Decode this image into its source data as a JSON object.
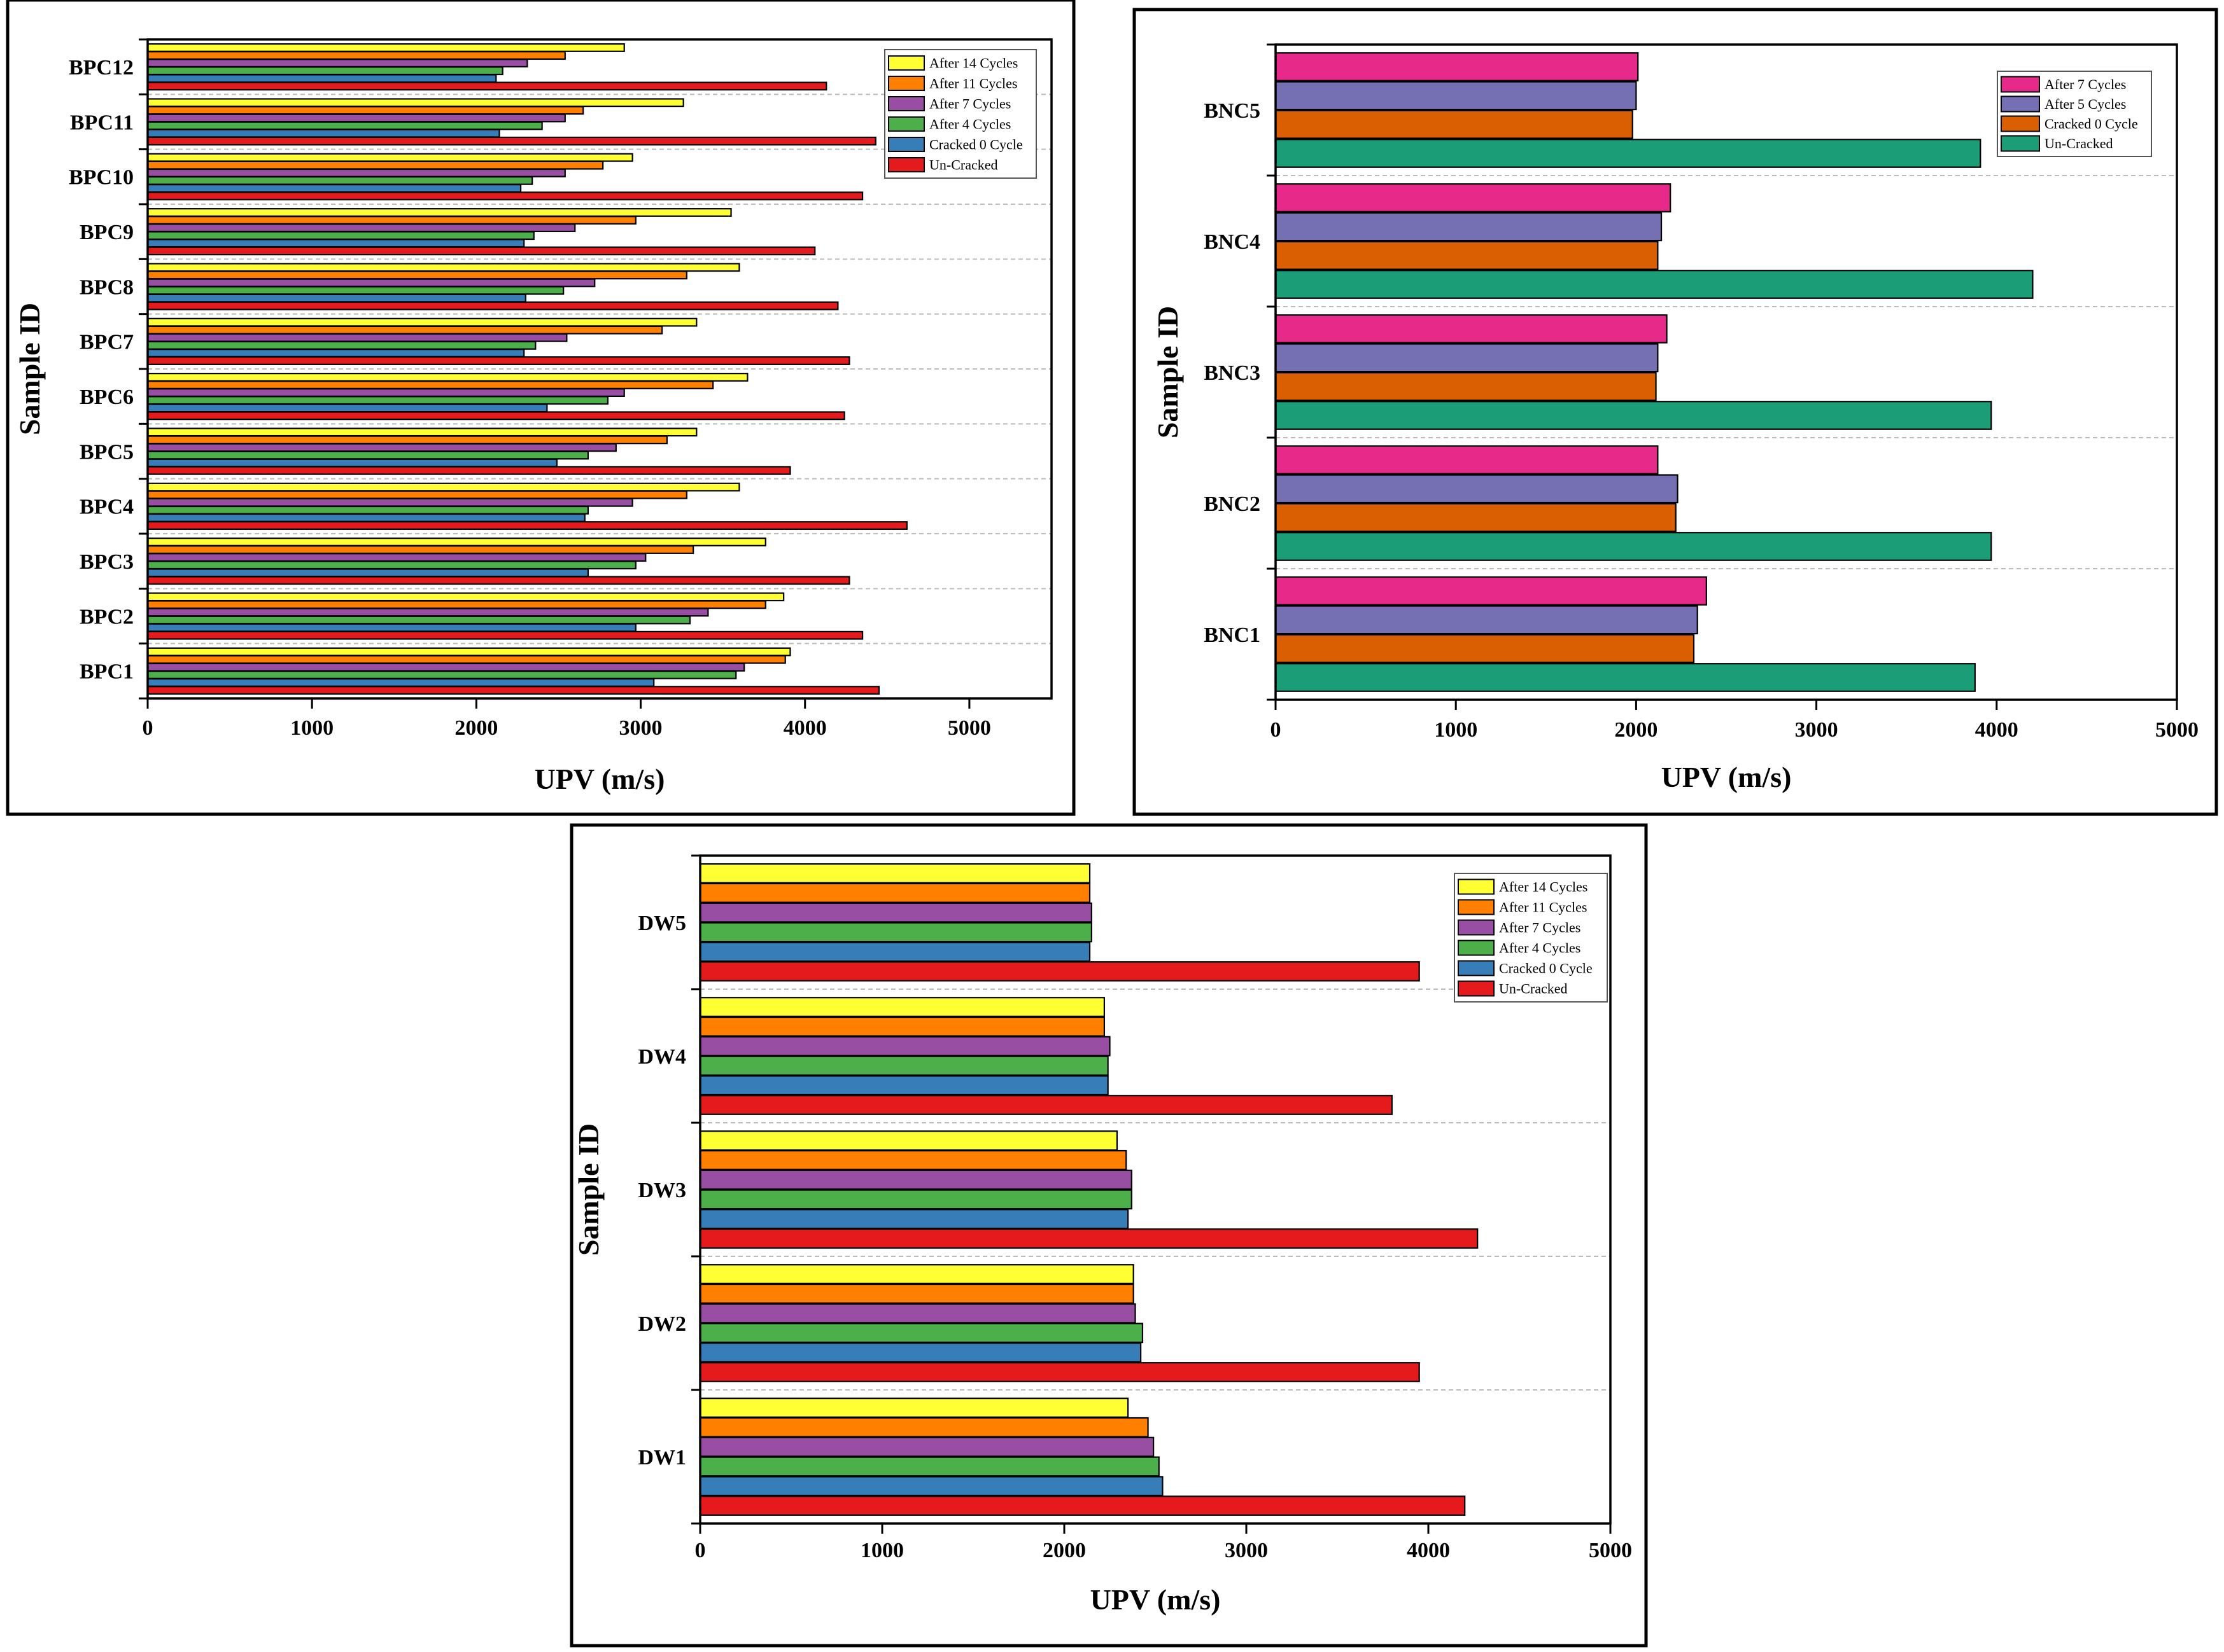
{
  "chart_data": [
    {
      "id": "bpc",
      "type": "bar",
      "orientation": "horizontal",
      "xlabel": "UPV (m/s)",
      "ylabel": "Sample ID",
      "xlim": [
        0,
        5500
      ],
      "xticks": [
        0,
        1000,
        2000,
        3000,
        4000,
        5000
      ],
      "categories": [
        "BPC1",
        "BPC2",
        "BPC3",
        "BPC4",
        "BPC5",
        "BPC6",
        "BPC7",
        "BPC8",
        "BPC9",
        "BPC10",
        "BPC11",
        "BPC12"
      ],
      "series": [
        {
          "name": "Un-Cracked",
          "color": "#e41a1c",
          "values": [
            4450,
            4350,
            4270,
            4620,
            3910,
            4240,
            4270,
            4200,
            4060,
            4350,
            4430,
            4130
          ]
        },
        {
          "name": "Cracked 0 Cycle",
          "color": "#377eb8",
          "values": [
            3080,
            2970,
            2680,
            2660,
            2490,
            2430,
            2290,
            2300,
            2290,
            2270,
            2140,
            2120
          ]
        },
        {
          "name": "After 4 Cycles",
          "color": "#4daf4a",
          "values": [
            3580,
            3300,
            2970,
            2680,
            2680,
            2800,
            2360,
            2530,
            2350,
            2340,
            2400,
            2160
          ]
        },
        {
          "name": "After 7 Cycles",
          "color": "#984ea3",
          "values": [
            3630,
            3410,
            3030,
            2950,
            2850,
            2900,
            2550,
            2720,
            2600,
            2540,
            2540,
            2310
          ]
        },
        {
          "name": "After 11 Cycles",
          "color": "#ff7f00",
          "values": [
            3880,
            3760,
            3320,
            3280,
            3160,
            3440,
            3130,
            3280,
            2970,
            2770,
            2650,
            2540
          ]
        },
        {
          "name": "After 14 Cycles",
          "color": "#ffff33",
          "values": [
            3910,
            3870,
            3760,
            3600,
            3340,
            3650,
            3340,
            3600,
            3550,
            2950,
            3260,
            2900
          ]
        }
      ],
      "legend_order": [
        "After 14 Cycles",
        "After 11 Cycles",
        "After 7 Cycles",
        "After 4 Cycles",
        "Cracked 0 Cycle",
        "Un-Cracked"
      ]
    },
    {
      "id": "bnc",
      "type": "bar",
      "orientation": "horizontal",
      "xlabel": "UPV (m/s)",
      "ylabel": "Sample ID",
      "xlim": [
        0,
        5000
      ],
      "xticks": [
        0,
        1000,
        2000,
        3000,
        4000,
        5000
      ],
      "categories": [
        "BNC1",
        "BNC2",
        "BNC3",
        "BNC4",
        "BNC5"
      ],
      "series": [
        {
          "name": "Un-Cracked",
          "color": "#1b9e77",
          "values": [
            3880,
            3970,
            3970,
            4200,
            3910
          ]
        },
        {
          "name": "Cracked 0 Cycle",
          "color": "#d95f02",
          "values": [
            2320,
            2220,
            2110,
            2120,
            1980
          ]
        },
        {
          "name": "After 5 Cycles",
          "color": "#7570b3",
          "values": [
            2340,
            2230,
            2120,
            2140,
            2000
          ]
        },
        {
          "name": "After 7 Cycles",
          "color": "#e7298a",
          "values": [
            2390,
            2120,
            2170,
            2190,
            2010
          ]
        }
      ],
      "legend_order": [
        "After 7 Cycles",
        "After 5 Cycles",
        "Cracked 0 Cycle",
        "Un-Cracked"
      ]
    },
    {
      "id": "dw",
      "type": "bar",
      "orientation": "horizontal",
      "xlabel": "UPV (m/s)",
      "ylabel": "Sample ID",
      "xlim": [
        0,
        5000
      ],
      "xticks": [
        0,
        1000,
        2000,
        3000,
        4000,
        5000
      ],
      "categories": [
        "DW1",
        "DW2",
        "DW3",
        "DW4",
        "DW5"
      ],
      "series": [
        {
          "name": "Un-Cracked",
          "color": "#e41a1c",
          "values": [
            4200,
            3950,
            4270,
            3800,
            3950
          ]
        },
        {
          "name": "Cracked 0 Cycle",
          "color": "#377eb8",
          "values": [
            2540,
            2420,
            2350,
            2240,
            2140
          ]
        },
        {
          "name": "After 4 Cycles",
          "color": "#4daf4a",
          "values": [
            2520,
            2430,
            2370,
            2240,
            2150
          ]
        },
        {
          "name": "After 7 Cycles",
          "color": "#984ea3",
          "values": [
            2490,
            2390,
            2370,
            2250,
            2150
          ]
        },
        {
          "name": "After 11 Cycles",
          "color": "#ff7f00",
          "values": [
            2460,
            2380,
            2340,
            2220,
            2140
          ]
        },
        {
          "name": "After 14 Cycles",
          "color": "#ffff33",
          "values": [
            2350,
            2380,
            2290,
            2220,
            2140
          ]
        }
      ],
      "legend_order": [
        "After 14 Cycles",
        "After 11 Cycles",
        "After 7 Cycles",
        "After 4 Cycles",
        "Cracked 0 Cycle",
        "Un-Cracked"
      ]
    }
  ]
}
